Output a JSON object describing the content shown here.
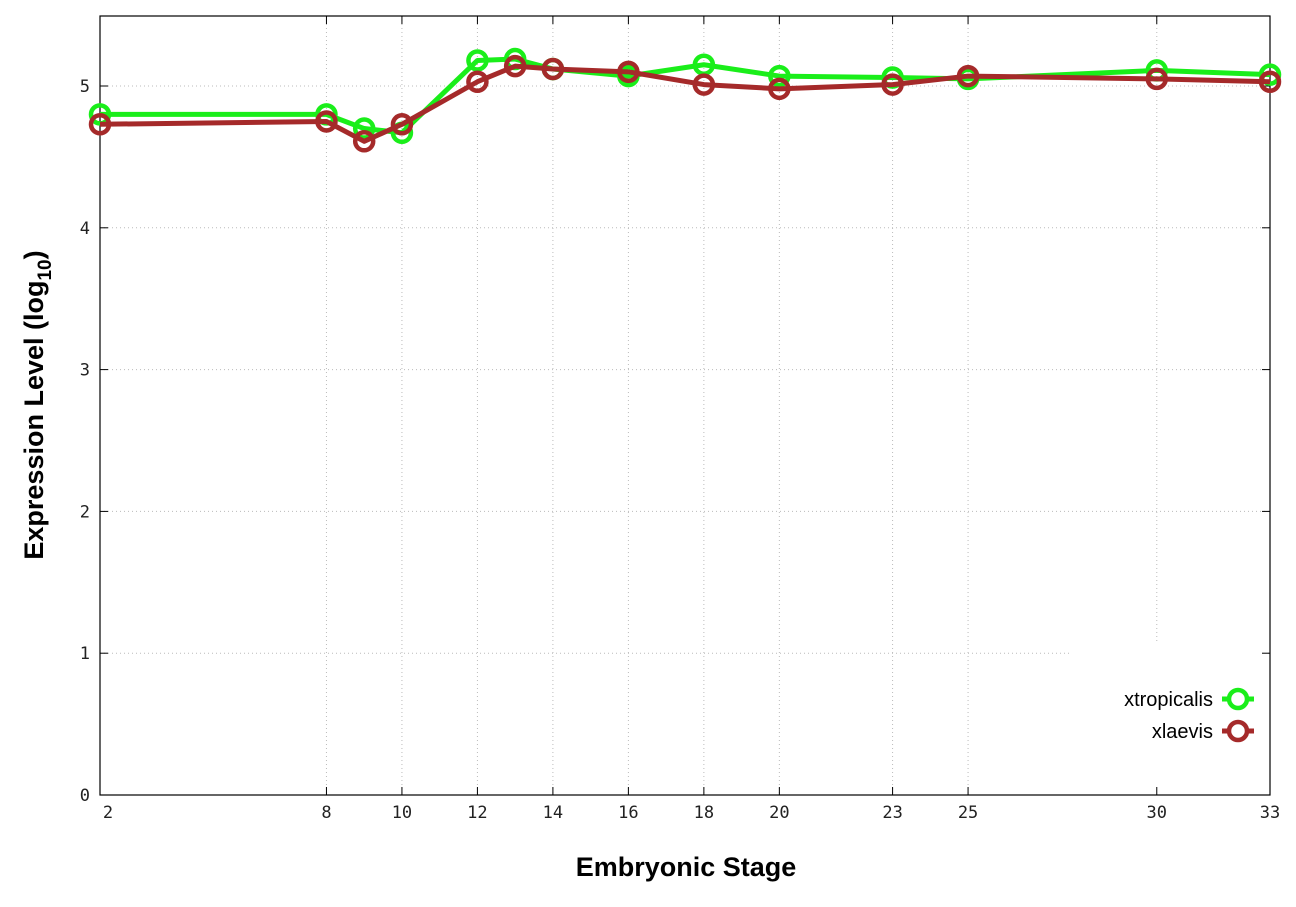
{
  "chart_data": {
    "type": "line",
    "title": "",
    "xlabel": "Embryonic Stage",
    "ylabel": "Expression Level (log",
    "ylabel_subscript": "10",
    "ylabel_close": ")",
    "x": [
      2,
      8,
      9,
      10,
      12,
      13,
      14,
      16,
      18,
      20,
      23,
      25,
      30,
      33
    ],
    "x_tick_labels": [
      "2",
      "8",
      "10",
      "12",
      "14",
      "16",
      "18",
      "20",
      "23",
      "25",
      "30",
      "33"
    ],
    "x_ticks": [
      2,
      8,
      10,
      12,
      14,
      16,
      18,
      20,
      23,
      25,
      30,
      33
    ],
    "y_ticks": [
      0,
      1,
      2,
      3,
      4,
      5
    ],
    "y_tick_labels": [
      "0",
      "1",
      "2",
      "3",
      "4",
      "5"
    ],
    "xlim": [
      2,
      33
    ],
    "ylim": [
      0,
      5.5
    ],
    "grid": true,
    "legend_placement": "bottom-right",
    "series": [
      {
        "name": "xtropicalis",
        "color": "#1aee1a",
        "values": [
          4.8,
          4.8,
          4.7,
          4.67,
          5.18,
          5.19,
          5.12,
          5.07,
          5.15,
          5.07,
          5.06,
          5.05,
          5.11,
          5.08
        ]
      },
      {
        "name": "xlaevis",
        "color": "#a52a2a",
        "values": [
          4.73,
          4.75,
          4.61,
          4.73,
          5.03,
          5.14,
          5.12,
          5.1,
          5.01,
          4.98,
          5.01,
          5.07,
          5.05,
          5.03
        ]
      }
    ]
  }
}
